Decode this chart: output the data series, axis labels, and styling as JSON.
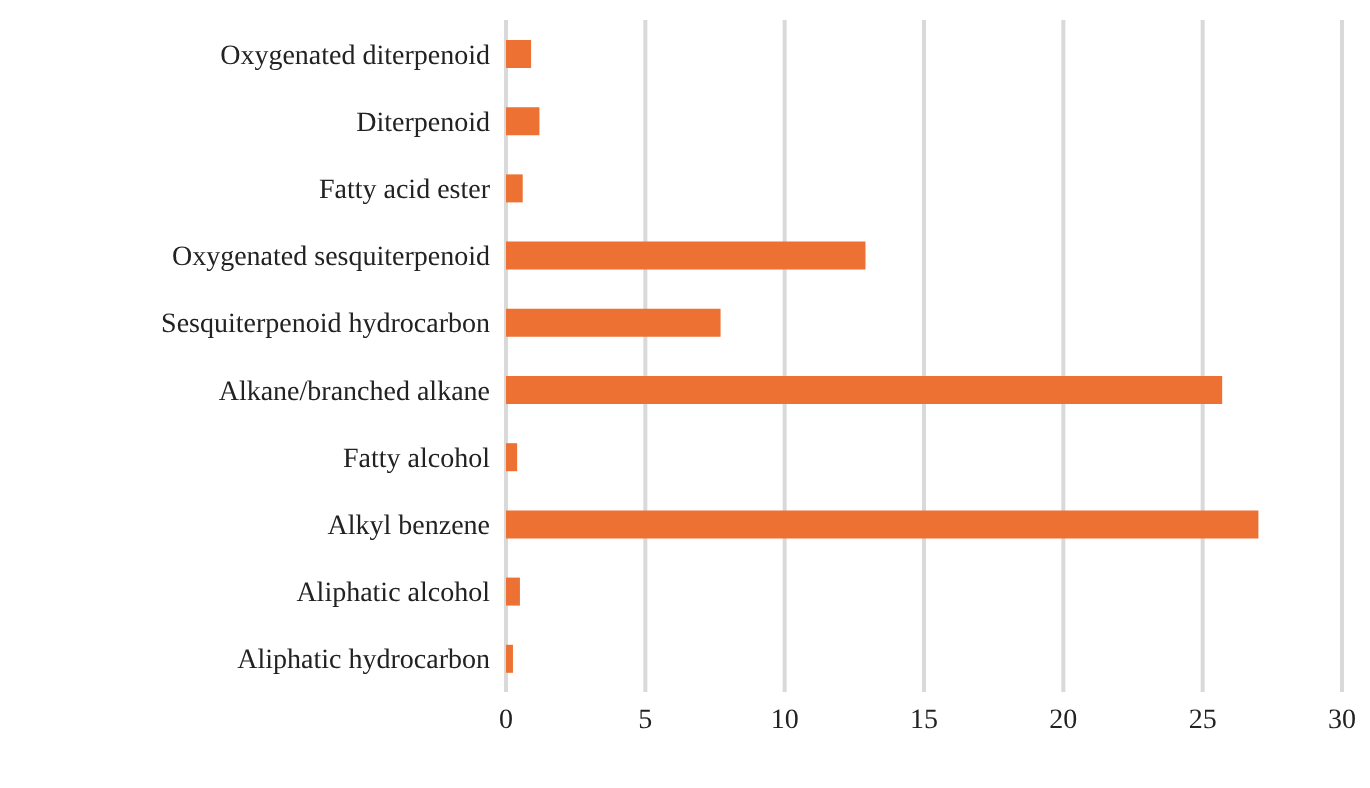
{
  "chart_data": {
    "type": "bar",
    "orientation": "horizontal",
    "categories": [
      "Oxygenated diterpenoid",
      "Diterpenoid",
      "Fatty acid ester",
      "Oxygenated sesquiterpenoid",
      "Sesquiterpenoid hydrocarbon",
      "Alkane/branched alkane",
      "Fatty alcohol",
      "Alkyl benzene",
      "Aliphatic alcohol",
      "Aliphatic hydrocarbon"
    ],
    "values": [
      0.9,
      1.2,
      0.6,
      12.9,
      7.7,
      25.7,
      0.4,
      27.0,
      0.5,
      0.25
    ],
    "color": "#ed7132",
    "xlim": [
      0,
      30
    ],
    "xticks": [
      0,
      5,
      10,
      15,
      20,
      25,
      30
    ],
    "grid": "x"
  }
}
